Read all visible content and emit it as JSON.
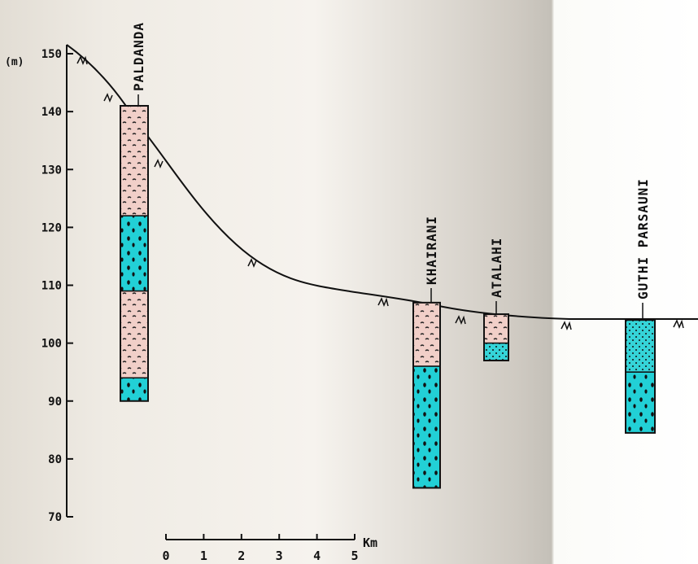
{
  "axis": {
    "unit": "(m)",
    "min": 70,
    "max": 150,
    "ticks": [
      150,
      140,
      130,
      120,
      110,
      100,
      90,
      80,
      70
    ],
    "tick_labels": [
      "150",
      "140",
      "130",
      "120",
      "110",
      "100",
      "90",
      "80",
      "70"
    ]
  },
  "scale_bar": {
    "ticks": [
      "0",
      "1",
      "2",
      "3",
      "4",
      "5"
    ],
    "unit": "Km"
  },
  "sites": [
    {
      "name": "PALDANDA",
      "top": 141,
      "layers": [
        {
          "type": "silt",
          "top": 141,
          "bottom": 122
        },
        {
          "type": "gravel",
          "top": 122,
          "bottom": 109
        },
        {
          "type": "silt",
          "top": 109,
          "bottom": 94
        },
        {
          "type": "gravel",
          "top": 94,
          "bottom": 90
        }
      ]
    },
    {
      "name": "KHAIRANI",
      "top": 107,
      "layers": [
        {
          "type": "silt",
          "top": 107,
          "bottom": 96
        },
        {
          "type": "gravel",
          "top": 96,
          "bottom": 75
        }
      ]
    },
    {
      "name": "ATALAHI",
      "top": 105,
      "layers": [
        {
          "type": "silt",
          "top": 105,
          "bottom": 100
        },
        {
          "type": "sand",
          "top": 100,
          "bottom": 97
        }
      ]
    },
    {
      "name": "GUTHI PARSAUNI",
      "top": 104,
      "layers": [
        {
          "type": "sand",
          "top": 104,
          "bottom": 95
        },
        {
          "type": "gravel",
          "top": 95,
          "bottom": 84.5
        }
      ]
    }
  ],
  "colors": {
    "silt": "#f1cfc8",
    "gravel": "#22d0d6",
    "sand": "#35d4d8",
    "ink": "#111111"
  }
}
